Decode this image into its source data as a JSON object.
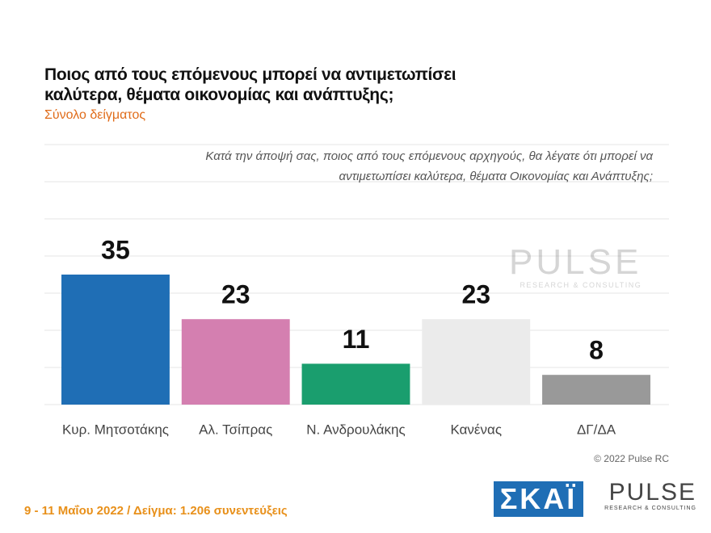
{
  "chart_data": {
    "type": "bar",
    "title": "Ποιος από τους επόμενους μπορεί να αντιμετωπίσει καλύτερα, θέματα οικονομίας και ανάπτυξης;",
    "subtitle": "Σύνολο δείγματος",
    "question": "Κατά την άποψή σας, ποιος  από τους επόμενους αρχηγούς, θα λέγατε ότι μπορεί να αντιμετωπίσει καλύτερα, θέματα Οικονομίας και Ανάπτυξης;",
    "categories": [
      "Κυρ. Μητσοτάκης",
      "Αλ. Τσίπρας",
      "Ν. Ανδρουλάκης",
      "Κανένας",
      "ΔΓ/ΔΑ"
    ],
    "values": [
      35,
      23,
      11,
      23,
      8
    ],
    "colors": [
      "#1f6eb5",
      "#d47fb0",
      "#1a9e6e",
      "#ebebeb",
      "#999999"
    ],
    "ylim": [
      0,
      70
    ],
    "yticks": [
      0,
      10,
      20,
      30,
      40,
      50,
      60,
      70
    ],
    "grid": true
  },
  "copyright": "© 2022 Pulse RC",
  "footer": "9 - 11  Μαΐου  2022  /  Δείγμα:  1.206 συνεντεύξεις",
  "logos": {
    "skai": "ΣΚΑΪ",
    "pulse": "PULSE",
    "pulse_tagline": "RESEARCH & CONSULTING"
  }
}
